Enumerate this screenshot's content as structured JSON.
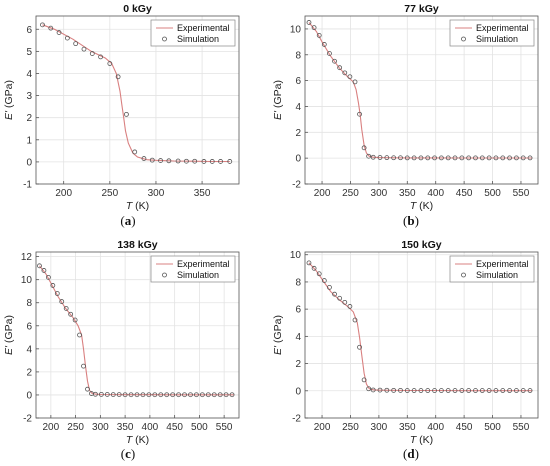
{
  "chart_data": [
    {
      "type": "line",
      "panel_label": "(a)",
      "title": "0 kGy",
      "xlabel": "T",
      "xunit": "(K)",
      "ylabel": "E'",
      "yunit": "(GPa)",
      "xlim": [
        170,
        390
      ],
      "ylim": [
        -1,
        6.6
      ],
      "xticks": [
        200,
        250,
        300,
        350
      ],
      "yticks": [
        -1,
        0,
        1,
        2,
        3,
        4,
        5,
        6
      ],
      "grid": true,
      "legend_position": "top-right",
      "series": [
        {
          "name": "Experimental",
          "style": "line",
          "color": "#d98080",
          "x": [
            177,
            190,
            210,
            230,
            245,
            252,
            257,
            261,
            263,
            265,
            267,
            270,
            275,
            280,
            290,
            300,
            320,
            340,
            360,
            380
          ],
          "y": [
            6.2,
            6.0,
            5.55,
            5.0,
            4.7,
            4.45,
            4.0,
            3.2,
            2.6,
            2.0,
            1.4,
            0.85,
            0.4,
            0.22,
            0.1,
            0.07,
            0.04,
            0.03,
            0.02,
            0.02
          ]
        },
        {
          "name": "Simulation",
          "style": "markers",
          "color": "#555555",
          "x": [
            177,
            186,
            195,
            204,
            213,
            222,
            231,
            240,
            250,
            259,
            268,
            277,
            287,
            296,
            305,
            314,
            324,
            333,
            342,
            352,
            361,
            370,
            380
          ],
          "y": [
            6.2,
            6.05,
            5.85,
            5.6,
            5.35,
            5.1,
            4.9,
            4.75,
            4.45,
            3.85,
            2.15,
            0.45,
            0.15,
            0.08,
            0.06,
            0.05,
            0.04,
            0.03,
            0.03,
            0.02,
            0.02,
            0.02,
            0.02
          ]
        }
      ]
    },
    {
      "type": "line",
      "panel_label": "(b)",
      "title": "77 kGy",
      "xlabel": "T",
      "xunit": "(K)",
      "ylabel": "E'",
      "yunit": "(GPa)",
      "xlim": [
        170,
        580
      ],
      "ylim": [
        -2,
        11
      ],
      "xticks": [
        200,
        250,
        300,
        350,
        400,
        450,
        500,
        550
      ],
      "yticks": [
        -2,
        0,
        2,
        4,
        6,
        8,
        10
      ],
      "grid": true,
      "legend_position": "top-right",
      "series": [
        {
          "name": "Experimental",
          "style": "line",
          "color": "#d98080",
          "x": [
            177,
            190,
            200,
            215,
            230,
            245,
            255,
            260,
            264,
            267,
            270,
            274,
            278,
            283,
            290,
            300,
            350,
            400,
            450,
            500,
            570
          ],
          "y": [
            10.5,
            9.8,
            9.0,
            7.9,
            7.0,
            6.3,
            5.9,
            5.3,
            4.3,
            3.4,
            2.2,
            1.0,
            0.4,
            0.15,
            0.07,
            0.04,
            0.02,
            0.02,
            0.01,
            0.01,
            0.01
          ]
        },
        {
          "name": "Simulation",
          "style": "markers",
          "color": "#555555",
          "x": [
            177,
            186,
            195,
            204,
            213,
            222,
            231,
            240,
            249,
            258,
            266,
            274,
            282,
            290,
            302,
            314,
            326,
            338,
            350,
            362,
            374,
            386,
            398,
            410,
            422,
            434,
            446,
            458,
            470,
            482,
            494,
            506,
            518,
            530,
            542,
            554,
            566
          ],
          "y": [
            10.5,
            10.1,
            9.5,
            8.8,
            8.1,
            7.5,
            7.0,
            6.6,
            6.3,
            5.9,
            3.4,
            0.8,
            0.15,
            0.07,
            0.05,
            0.04,
            0.03,
            0.03,
            0.02,
            0.02,
            0.02,
            0.02,
            0.02,
            0.02,
            0.02,
            0.02,
            0.02,
            0.02,
            0.02,
            0.02,
            0.02,
            0.02,
            0.02,
            0.02,
            0.02,
            0.02,
            0.02
          ]
        }
      ]
    },
    {
      "type": "line",
      "panel_label": "(c)",
      "title": "138 kGy",
      "xlabel": "T",
      "xunit": "(K)",
      "ylabel": "E'",
      "yunit": "(GPa)",
      "xlim": [
        170,
        580
      ],
      "ylim": [
        -2,
        12.4
      ],
      "xticks": [
        200,
        250,
        300,
        350,
        400,
        450,
        500,
        550
      ],
      "yticks": [
        -2,
        0,
        2,
        4,
        6,
        8,
        10,
        12
      ],
      "grid": true,
      "legend_position": "top-right",
      "series": [
        {
          "name": "Experimental",
          "style": "line",
          "color": "#d98080",
          "x": [
            177,
            190,
            200,
            215,
            230,
            245,
            255,
            262,
            266,
            270,
            274,
            278,
            283,
            290,
            300,
            350,
            400,
            450,
            500,
            570
          ],
          "y": [
            11.2,
            10.5,
            9.7,
            8.5,
            7.5,
            6.7,
            6.0,
            5.2,
            4.0,
            2.5,
            1.2,
            0.4,
            0.15,
            0.07,
            0.04,
            0.02,
            0.02,
            0.01,
            0.01,
            0.01
          ]
        },
        {
          "name": "Simulation",
          "style": "markers",
          "color": "#555555",
          "x": [
            177,
            186,
            195,
            204,
            213,
            222,
            231,
            240,
            249,
            258,
            266,
            274,
            282,
            290,
            302,
            314,
            326,
            338,
            350,
            362,
            374,
            386,
            398,
            410,
            422,
            434,
            446,
            458,
            470,
            482,
            494,
            506,
            518,
            530,
            542,
            554,
            566
          ],
          "y": [
            11.2,
            10.8,
            10.2,
            9.5,
            8.8,
            8.1,
            7.5,
            7.0,
            6.5,
            5.2,
            2.5,
            0.5,
            0.12,
            0.06,
            0.05,
            0.04,
            0.03,
            0.03,
            0.02,
            0.02,
            0.02,
            0.02,
            0.02,
            0.02,
            0.02,
            0.02,
            0.02,
            0.02,
            0.02,
            0.02,
            0.02,
            0.02,
            0.02,
            0.02,
            0.02,
            0.02,
            0.02
          ]
        }
      ]
    },
    {
      "type": "line",
      "panel_label": "(d)",
      "title": "150 kGy",
      "xlabel": "T",
      "xunit": "(K)",
      "ylabel": "E'",
      "yunit": "(GPa)",
      "xlim": [
        170,
        580
      ],
      "ylim": [
        -2,
        10.2
      ],
      "xticks": [
        200,
        250,
        300,
        350,
        400,
        450,
        500,
        550
      ],
      "yticks": [
        -2,
        0,
        2,
        4,
        6,
        8,
        10
      ],
      "grid": true,
      "legend_position": "top-right",
      "series": [
        {
          "name": "Experimental",
          "style": "line",
          "color": "#d98080",
          "x": [
            177,
            190,
            200,
            215,
            230,
            245,
            255,
            262,
            266,
            270,
            274,
            278,
            283,
            290,
            300,
            350,
            400,
            450,
            500,
            570
          ],
          "y": [
            9.4,
            8.8,
            8.2,
            7.3,
            6.7,
            6.2,
            5.8,
            5.0,
            3.9,
            2.6,
            1.3,
            0.5,
            0.15,
            0.07,
            0.04,
            0.02,
            0.02,
            0.01,
            0.01,
            0.01
          ]
        },
        {
          "name": "Simulation",
          "style": "markers",
          "color": "#555555",
          "x": [
            177,
            186,
            195,
            204,
            213,
            222,
            231,
            240,
            249,
            258,
            266,
            274,
            282,
            290,
            302,
            314,
            326,
            338,
            350,
            362,
            374,
            386,
            398,
            410,
            422,
            434,
            446,
            458,
            470,
            482,
            494,
            506,
            518,
            530,
            542,
            554,
            566
          ],
          "y": [
            9.4,
            9.0,
            8.6,
            8.1,
            7.6,
            7.1,
            6.8,
            6.5,
            6.2,
            5.2,
            3.2,
            0.8,
            0.15,
            0.06,
            0.05,
            0.04,
            0.03,
            0.03,
            0.02,
            0.02,
            0.02,
            0.02,
            0.02,
            0.02,
            0.02,
            0.02,
            0.02,
            0.02,
            0.02,
            0.02,
            0.02,
            0.02,
            0.02,
            0.02,
            0.02,
            0.02,
            0.02
          ]
        }
      ]
    }
  ]
}
